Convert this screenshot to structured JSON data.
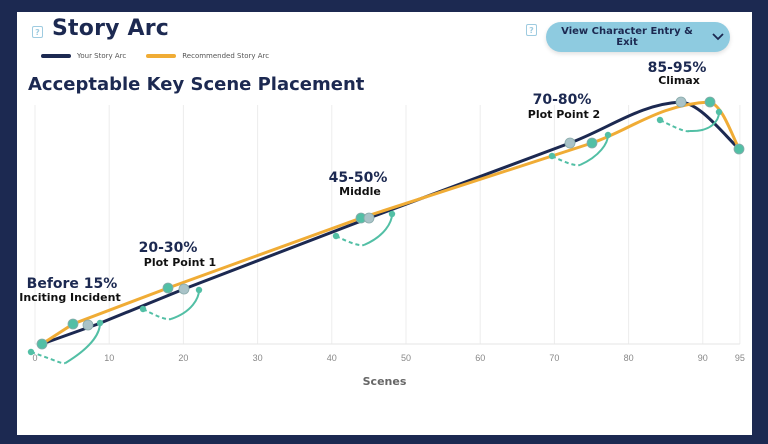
{
  "header": {
    "title": "Story Arc",
    "help_icon": "question-icon",
    "view_button_label": "View Character Entry & Exit",
    "view_button_icon": "chevron-down-icon"
  },
  "legend": [
    {
      "label": "Your Story Arc",
      "color": "#1c2951"
    },
    {
      "label": "Recommended Story Arc",
      "color": "#f0ac35"
    }
  ],
  "subtitle": "Acceptable Key Scene Placement",
  "colors": {
    "background": "#1c2951",
    "navy": "#1c2951",
    "orange": "#f0ac35",
    "teal": "#52bfa5",
    "gray_marker": "#a9c3c8",
    "button": "#8ecbe0"
  },
  "chart_data": {
    "type": "line",
    "title": "Story Arc",
    "subtitle": "Acceptable Key Scene Placement",
    "xlabel": "Scenes",
    "ylabel": "",
    "xlim": [
      0,
      95
    ],
    "x_ticks": [
      0,
      10,
      20,
      30,
      40,
      50,
      60,
      70,
      80,
      90,
      95
    ],
    "grid": true,
    "legend_position": "top-left",
    "series": [
      {
        "name": "Your Story Arc",
        "color": "#1c2951",
        "x": [
          1,
          7,
          20,
          45,
          72,
          87,
          95
        ],
        "y": [
          0.0,
          0.06,
          0.22,
          0.49,
          0.77,
          0.98,
          0.77
        ],
        "key_markers": [
          7,
          20,
          45,
          72,
          87
        ]
      },
      {
        "name": "Recommended Story Arc",
        "color": "#f0ac35",
        "x": [
          1,
          5,
          18,
          44,
          75,
          91,
          95
        ],
        "y": [
          0.0,
          0.09,
          0.24,
          0.49,
          0.77,
          0.98,
          0.77
        ],
        "key_markers": [
          5,
          18,
          44,
          75,
          91
        ]
      }
    ],
    "annotations": [
      {
        "range": "Before 15%",
        "name": "Inciting Incident",
        "scene_range": [
          0,
          9
        ]
      },
      {
        "range": "20-30%",
        "name": "Plot Point 1",
        "scene_range": [
          15,
          22
        ]
      },
      {
        "range": "45-50%",
        "name": "Middle",
        "scene_range": [
          41,
          48
        ]
      },
      {
        "range": "70-80%",
        "name": "Plot Point 2",
        "scene_range": [
          70,
          77
        ]
      },
      {
        "range": "85-95%",
        "name": "Climax",
        "scene_range": [
          84,
          92
        ]
      }
    ]
  }
}
